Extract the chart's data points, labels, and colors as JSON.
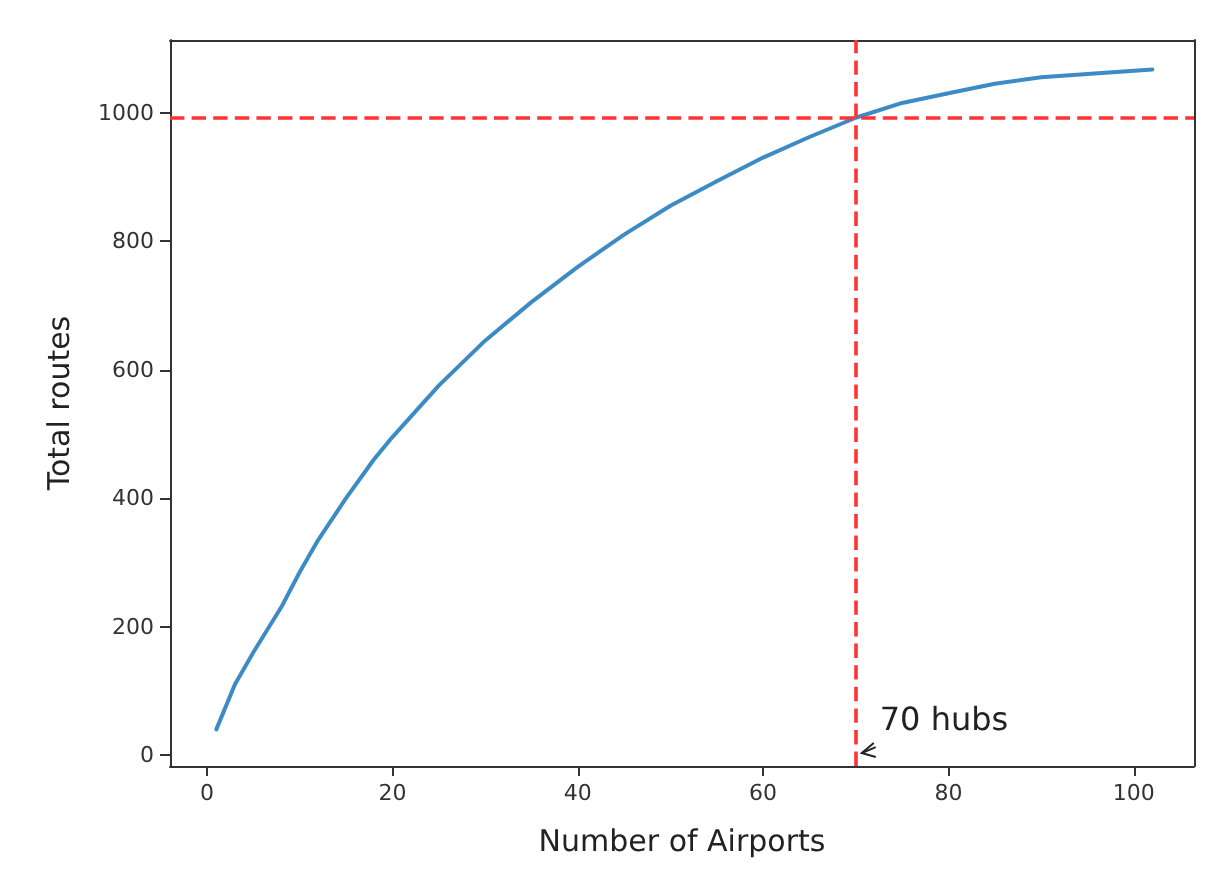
{
  "chart_data": {
    "type": "line",
    "xlabel": "Number of Airports",
    "ylabel": "Total routes",
    "x": [
      1,
      3,
      5,
      8,
      10,
      12,
      15,
      18,
      20,
      25,
      30,
      35,
      40,
      45,
      50,
      55,
      60,
      65,
      70,
      75,
      80,
      85,
      90,
      95,
      102
    ],
    "series": [
      {
        "color": "#3d8bc4",
        "values": [
          40,
          110,
          160,
          230,
          285,
          335,
          400,
          460,
          495,
          575,
          645,
          705,
          760,
          810,
          855,
          893,
          930,
          962,
          992,
          1015,
          1030,
          1045,
          1055,
          1060,
          1067
        ]
      }
    ],
    "xlim": [
      -4,
      106.5
    ],
    "ylim": [
      -17,
      1113
    ],
    "xticks": [
      0,
      20,
      40,
      60,
      80,
      100
    ],
    "yticks": [
      0,
      200,
      400,
      600,
      800,
      1000
    ],
    "grid": false,
    "marker": "none",
    "line_style": "solid",
    "ref_lines": [
      {
        "axis": "x",
        "value": 70,
        "color": "#ff3333",
        "line_style": "dashed"
      },
      {
        "axis": "y",
        "value": 992,
        "color": "#ff3333",
        "line_style": "dashed"
      }
    ],
    "annotations": [
      "70 hubs"
    ]
  }
}
